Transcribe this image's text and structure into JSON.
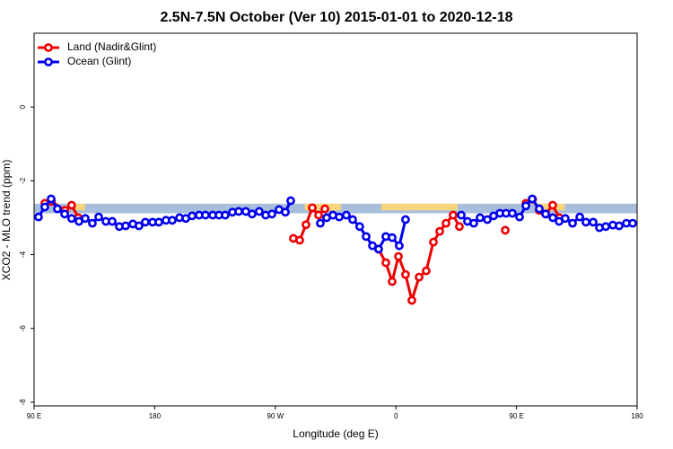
{
  "chart_data": {
    "type": "line",
    "title": "2.5N-7.5N October (Ver 10)   2015-01-01 to 2020-12-18",
    "xlabel": "Longitude (deg E)",
    "ylabel": "XCO2 - MLO trend (ppm)",
    "xlim": [
      90,
      540
    ],
    "ylim": [
      -8.1,
      2.0
    ],
    "xticks": [
      {
        "value": 90,
        "label": "90 E"
      },
      {
        "value": 180,
        "label": "180"
      },
      {
        "value": 270,
        "label": "90 W"
      },
      {
        "value": 360,
        "label": "0"
      },
      {
        "value": 450,
        "label": "90 E"
      },
      {
        "value": 540,
        "label": "180"
      }
    ],
    "yticks": [
      0,
      -2,
      -4,
      -6,
      -8
    ],
    "legend": "top-left",
    "band": {
      "range": [
        -2.88,
        -2.62
      ],
      "color": "#a7bedc",
      "highlight_color": "#f8d57a",
      "highlights": [
        [
          121,
          128
        ],
        [
          292,
          319
        ],
        [
          349,
          406
        ],
        [
          466,
          486
        ]
      ]
    },
    "series": [
      {
        "name": "Land (Nadir&Glint)",
        "color": "#ee0000",
        "x": [
          98,
          103,
          113,
          118,
          123,
          null,
          283.5,
          288.2,
          292.9,
          297.6,
          302.3,
          307,
          null,
          347,
          352.5,
          357.2,
          361.9,
          367.2,
          371.9,
          377.3,
          382.6,
          388,
          392.7,
          397.4,
          402.7,
          407.4,
          null,
          441.6,
          null,
          457,
          462,
          467,
          472,
          477,
          482
        ],
        "values": [
          -2.61,
          -2.56,
          -2.8,
          -2.66,
          -3.0,
          null,
          -3.56,
          -3.61,
          -3.19,
          -2.73,
          -2.93,
          -2.76,
          null,
          -3.85,
          -4.22,
          -4.73,
          -4.05,
          -4.54,
          -5.24,
          -4.61,
          -4.44,
          -3.66,
          -3.37,
          -3.15,
          -2.93,
          -3.24,
          null,
          -3.34,
          null,
          -2.61,
          -2.5,
          -2.8,
          -2.9,
          -2.66,
          -3.0
        ]
      },
      {
        "name": "Ocean (Glint)",
        "color": "#0000ee",
        "x": [
          93.3,
          98,
          102.7,
          107.4,
          112.8,
          118,
          123.5,
          128.2,
          133.5,
          138.2,
          143.6,
          148.3,
          153.6,
          158.3,
          163.7,
          168.3,
          173,
          178.4,
          183.1,
          188.4,
          193.1,
          198.5,
          203.2,
          207.9,
          213.2,
          217.9,
          223.3,
          228,
          232.6,
          238,
          242.7,
          248,
          252.7,
          258,
          262.8,
          267.5,
          272.8,
          277.5,
          281.5,
          null,
          303.6,
          308.3,
          313,
          317.7,
          323,
          327.7,
          333,
          337.8,
          342.5,
          347.1,
          352.5,
          357.2,
          362.5,
          367.2,
          null,
          408.8,
          413.4,
          418.1,
          422.8,
          428.2,
          432.9,
          437.6,
          442.2,
          446.9,
          452.3,
          457,
          461.7,
          467,
          471.7,
          477.1,
          481.8,
          486.4,
          491.8,
          497.2,
          501.8,
          507.2,
          511.9,
          516.6,
          521.9,
          526.6,
          532,
          536.7
        ],
        "values": [
          -2.98,
          -2.71,
          -2.49,
          -2.76,
          -2.9,
          -3.02,
          -3.1,
          -3.02,
          -3.15,
          -2.98,
          -3.1,
          -3.1,
          -3.24,
          -3.22,
          -3.17,
          -3.22,
          -3.12,
          -3.12,
          -3.12,
          -3.07,
          -3.07,
          -3.0,
          -3.02,
          -2.95,
          -2.93,
          -2.93,
          -2.93,
          -2.93,
          -2.93,
          -2.85,
          -2.83,
          -2.83,
          -2.9,
          -2.83,
          -2.93,
          -2.9,
          -2.78,
          -2.85,
          -2.54,
          null,
          -3.15,
          -3.0,
          -2.93,
          -2.98,
          -2.93,
          -3.05,
          -3.24,
          -3.51,
          -3.76,
          -3.85,
          -3.51,
          -3.54,
          -3.76,
          -3.05,
          null,
          -2.93,
          -3.1,
          -3.15,
          -3.0,
          -3.05,
          -2.95,
          -2.88,
          -2.88,
          -2.88,
          -2.98,
          -2.68,
          -2.49,
          -2.76,
          -2.9,
          -3.0,
          -3.1,
          -3.02,
          -3.15,
          -2.98,
          -3.12,
          -3.12,
          -3.27,
          -3.24,
          -3.2,
          -3.22,
          -3.15,
          -3.15
        ]
      }
    ]
  }
}
